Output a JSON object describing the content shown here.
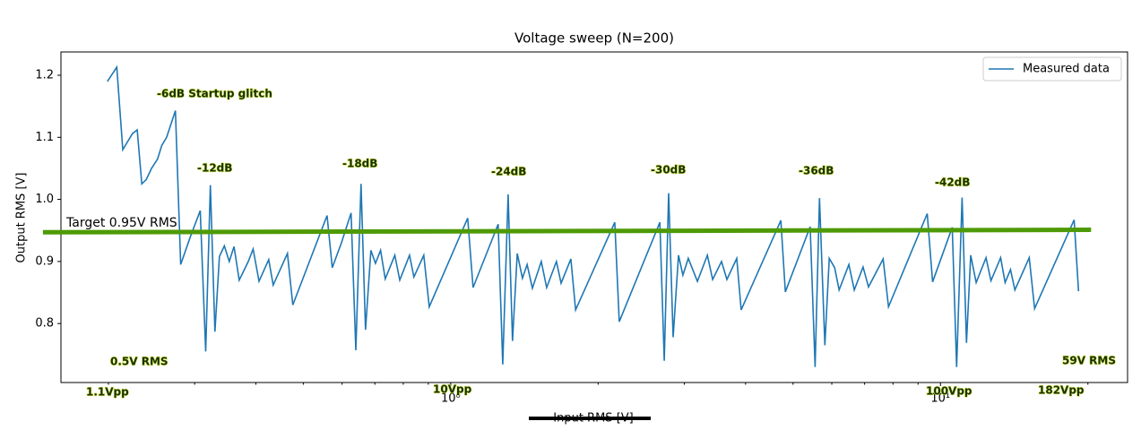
{
  "chart_data": {
    "type": "line",
    "title": "Voltage sweep (N=200)",
    "xlabel": "Input RMS [V]",
    "ylabel": "Output RMS [V]",
    "xscale": "log",
    "xlim": [
      0.16,
      24.1
    ],
    "xticks": [
      {
        "value": 1,
        "label": "10⁰"
      },
      {
        "value": 10,
        "label": "10¹"
      }
    ],
    "xminorticks": [
      0.2,
      0.3,
      0.4,
      0.5,
      0.6,
      0.7,
      0.8,
      0.9,
      2,
      3,
      4,
      5,
      6,
      7,
      8,
      9,
      20
    ],
    "ylim": [
      0.705,
      1.2375
    ],
    "yticks": [
      0.8,
      0.9,
      {
        "value": 1,
        "label": "1.0"
      },
      1.1,
      1.2
    ],
    "legend": "upper right",
    "x": [
      0.199,
      0.208,
      0.214,
      0.224,
      0.229,
      0.234,
      0.239,
      0.245,
      0.252,
      0.257,
      0.263,
      0.274,
      0.281,
      0.294,
      0.308,
      0.316,
      0.323,
      0.33,
      0.337,
      0.345,
      0.353,
      0.361,
      0.37,
      0.386,
      0.395,
      0.406,
      0.425,
      0.434,
      0.464,
      0.476,
      0.559,
      0.573,
      0.598,
      0.626,
      0.64,
      0.656,
      0.67,
      0.687,
      0.702,
      0.719,
      0.735,
      0.769,
      0.787,
      0.824,
      0.841,
      0.881,
      0.904,
      1.083,
      1.111,
      1.25,
      1.277,
      1.31,
      1.337,
      1.367,
      1.401,
      1.432,
      1.468,
      1.531,
      1.57,
      1.644,
      1.68,
      1.759,
      1.799,
      2.163,
      2.209,
      2.673,
      2.729,
      2.786,
      2.845,
      2.918,
      2.979,
      3.055,
      3.189,
      3.342,
      3.427,
      3.573,
      3.664,
      3.837,
      3.917,
      4.721,
      4.822,
      5.42,
      5.546,
      5.662,
      5.808,
      5.929,
      6.081,
      6.209,
      6.502,
      6.668,
      6.95,
      7.129,
      7.638,
      7.834,
      9.397,
      9.638,
      10.57,
      10.79,
      11.07,
      11.3,
      11.53,
      11.83,
      12.39,
      12.68,
      13.27,
      13.55,
      13.9,
      14.19,
      15.18,
      15.57,
      18.75,
      19.14
    ],
    "series": [
      {
        "name": "Measured data",
        "color": "#1f77b4",
        "values": [
          1.19,
          1.213,
          1.08,
          1.106,
          1.112,
          1.025,
          1.032,
          1.05,
          1.065,
          1.087,
          1.1,
          1.143,
          0.895,
          0.94,
          0.982,
          0.755,
          1.023,
          0.787,
          0.908,
          0.925,
          0.9,
          0.924,
          0.87,
          0.9,
          0.92,
          0.868,
          0.903,
          0.862,
          0.913,
          0.83,
          0.974,
          0.89,
          0.93,
          0.978,
          0.757,
          1.025,
          0.79,
          0.918,
          0.897,
          0.918,
          0.872,
          0.91,
          0.87,
          0.91,
          0.875,
          0.91,
          0.827,
          0.97,
          0.858,
          0.96,
          0.734,
          1.008,
          0.772,
          0.913,
          0.873,
          0.895,
          0.857,
          0.9,
          0.858,
          0.9,
          0.865,
          0.904,
          0.822,
          0.963,
          0.803,
          0.963,
          0.74,
          1.01,
          0.778,
          0.91,
          0.878,
          0.905,
          0.868,
          0.91,
          0.871,
          0.9,
          0.871,
          0.905,
          0.822,
          0.966,
          0.851,
          0.956,
          0.73,
          1.002,
          0.765,
          0.905,
          0.89,
          0.854,
          0.895,
          0.854,
          0.891,
          0.859,
          0.904,
          0.827,
          0.977,
          0.867,
          0.955,
          0.73,
          1.003,
          0.769,
          0.91,
          0.866,
          0.906,
          0.869,
          0.906,
          0.866,
          0.887,
          0.854,
          0.906,
          0.824,
          0.967,
          0.852
        ]
      }
    ],
    "target_line": {
      "label": "Target 0.95V RMS",
      "x": [
        0.147,
        20.3
      ],
      "y": [
        0.947,
        0.951
      ],
      "color": "#4e9a06"
    },
    "annotations": [
      "-6dB Startup glitch",
      "-12dB",
      "-18dB",
      "-24dB",
      "-30dB",
      "-36dB",
      "-42dB",
      "0.5V RMS",
      "59V RMS",
      "1.1Vpp",
      "10Vpp",
      "100Vpp",
      "182Vpp"
    ]
  }
}
